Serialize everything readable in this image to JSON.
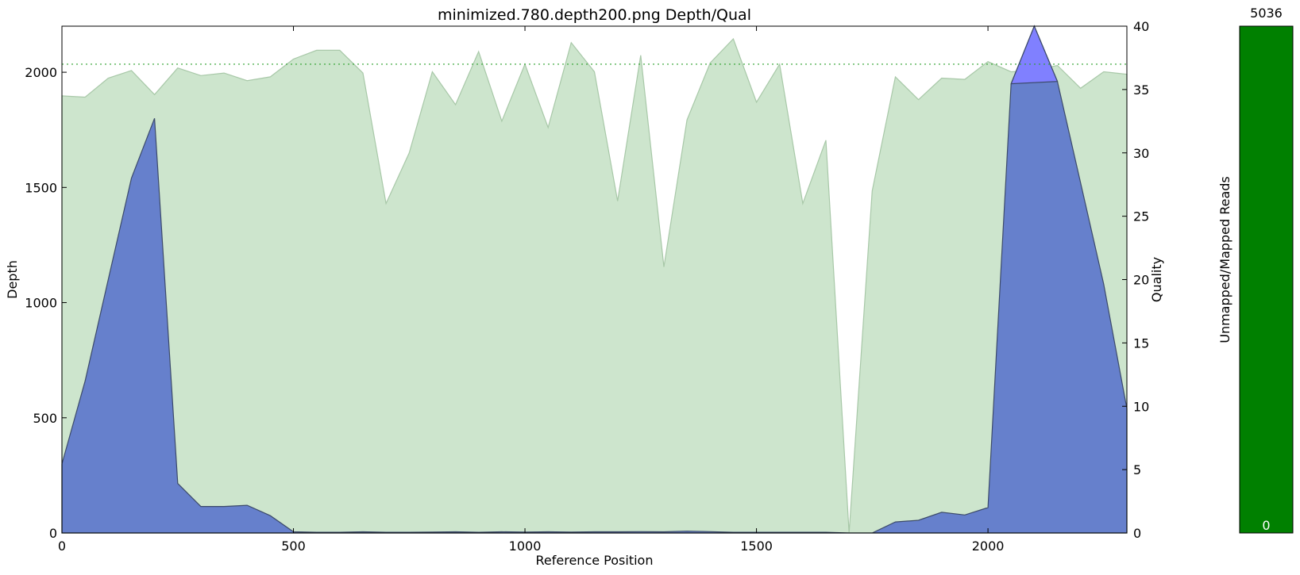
{
  "chart_data": [
    {
      "type": "area",
      "title": "minimized.780.depth200.png Depth/Qual",
      "xlabel": "Reference Position",
      "ylabel": "Depth",
      "y2label": "Quality",
      "xlim": [
        0,
        2300
      ],
      "ylim": [
        0,
        2200
      ],
      "y2lim": [
        0,
        40
      ],
      "x_ticks": [
        0,
        500,
        1000,
        1500,
        2000
      ],
      "y_ticks": [
        0,
        500,
        1000,
        1500,
        2000
      ],
      "y2_ticks": [
        0,
        5,
        10,
        15,
        20,
        25,
        30,
        35,
        40
      ],
      "reference_line": {
        "axis": "y",
        "value": 2035,
        "style": "dotted",
        "color": "#2ca02c"
      },
      "series": [
        {
          "axis": "right",
          "color": "#cde5cd",
          "line_color": "#a8c8a8",
          "x": [
            0,
            50,
            100,
            150,
            200,
            250,
            300,
            350,
            400,
            450,
            500,
            550,
            600,
            650,
            700,
            750,
            800,
            850,
            900,
            950,
            1000,
            1050,
            1100,
            1150,
            1200,
            1250,
            1300,
            1350,
            1400,
            1450,
            1500,
            1550,
            1600,
            1650,
            1700,
            1750,
            1800,
            1850,
            1900,
            1950,
            2000,
            2050,
            2100,
            2150,
            2200,
            2250,
            2300
          ],
          "values": [
            34.5,
            34.4,
            35.9,
            36.5,
            34.6,
            36.7,
            36.1,
            36.3,
            35.7,
            36.0,
            37.4,
            38.1,
            38.1,
            36.3,
            26.0,
            30.0,
            36.4,
            33.8,
            38.0,
            32.5,
            37.0,
            32.0,
            38.7,
            36.4,
            26.2,
            37.7,
            21.0,
            32.6,
            37.1,
            39.0,
            34.0,
            37.0,
            26.0,
            31.0,
            0.0,
            27.0,
            36.0,
            34.2,
            35.9,
            35.8,
            37.2,
            36.4,
            36.5,
            36.9,
            35.1,
            36.4,
            36.2
          ]
        },
        {
          "axis": "left",
          "color": "#6680cc",
          "line_color": "#3c4a6a",
          "x": [
            0,
            50,
            100,
            150,
            200,
            250,
            300,
            350,
            400,
            450,
            500,
            550,
            600,
            650,
            700,
            750,
            800,
            850,
            900,
            950,
            1000,
            1050,
            1100,
            1150,
            1200,
            1250,
            1300,
            1350,
            1400,
            1450,
            1500,
            1550,
            1600,
            1650,
            1700,
            1750,
            1800,
            1850,
            1900,
            1950,
            2000,
            2050,
            2100,
            2150,
            2200,
            2250,
            2300
          ],
          "values": [
            300,
            660,
            1100,
            1540,
            1800,
            215,
            115,
            115,
            120,
            75,
            5,
            3,
            3,
            5,
            3,
            3,
            4,
            5,
            3,
            5,
            4,
            5,
            4,
            5,
            5,
            6,
            5,
            8,
            6,
            3,
            3,
            3,
            3,
            3,
            0,
            0,
            48,
            55,
            90,
            78,
            110,
            1950,
            2200,
            1960,
            1520,
            1080,
            540
          ]
        }
      ]
    },
    {
      "type": "bar",
      "ylabel": "Unmapped/Mapped Reads",
      "categories": [
        "mapped"
      ],
      "values": [
        5036
      ],
      "top_label": "5036",
      "bottom_label": "0",
      "color": "#008000"
    }
  ]
}
